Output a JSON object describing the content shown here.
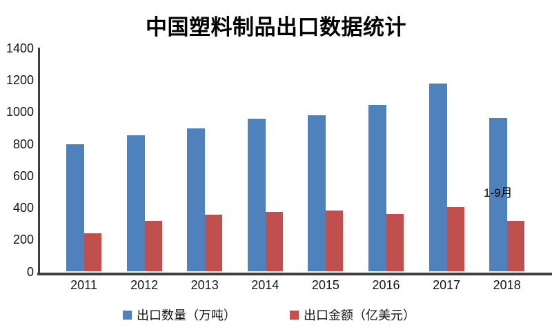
{
  "title": "中国塑料制品出口数据统计",
  "chart_data": {
    "type": "bar",
    "title": "中国塑料制品出口数据统计",
    "categories": [
      "2011",
      "2012",
      "2013",
      "2014",
      "2015",
      "2016",
      "2017",
      "2018"
    ],
    "series": [
      {
        "name": "出口数量（万吨）",
        "color": "#4F81BD",
        "values": [
          800,
          855,
          900,
          958,
          980,
          1045,
          1178,
          962
        ]
      },
      {
        "name": "出口金额（亿美元）",
        "color": "#C0504D",
        "values": [
          240,
          320,
          357,
          373,
          382,
          361,
          404,
          320
        ]
      }
    ],
    "xlabel": "",
    "ylabel": "",
    "ylim": [
      0,
      1400
    ],
    "ytick_step": 200,
    "yticks": [
      0,
      200,
      400,
      600,
      800,
      1000,
      1200,
      1400
    ],
    "grid": false,
    "legend_position": "bottom",
    "annotation": "1-9月",
    "annotation_target": "2018"
  },
  "colors": {
    "axis": "#3f3f3f",
    "text": "#141414",
    "background": "#ffffff",
    "series_blue": "#4F81BD",
    "series_red": "#C0504D"
  }
}
